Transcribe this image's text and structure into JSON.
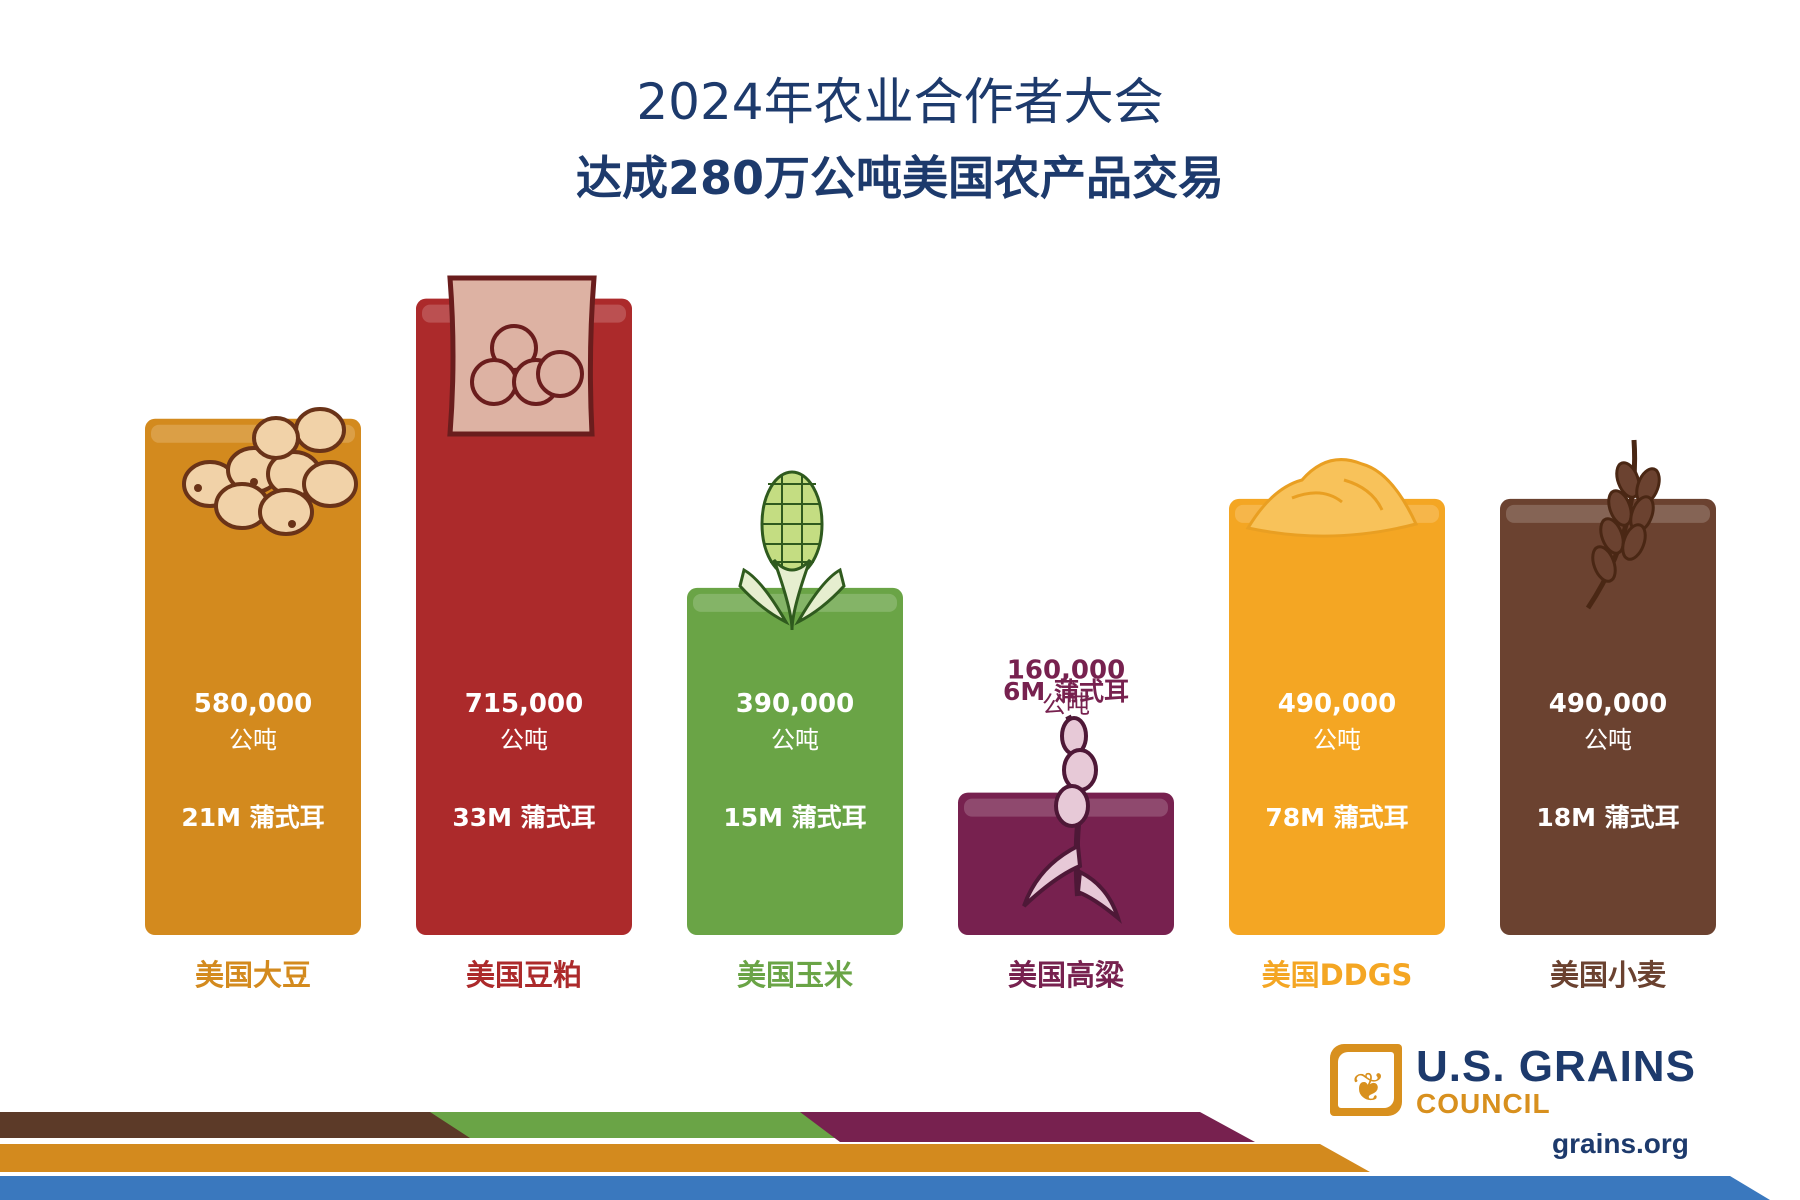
{
  "header": {
    "title_line1": "2024年农业合作者大会",
    "title_line2": "达成280万公吨美国农产品交易"
  },
  "chart_data": {
    "type": "bar",
    "title": "2024年农业合作者大会",
    "subtitle": "达成280万公吨美国农产品交易",
    "categories": [
      "美国大豆",
      "美国豆粕",
      "美国玉米",
      "美国高粱",
      "美国DDGS",
      "美国小麦"
    ],
    "values": [
      580000,
      715000,
      390000,
      160000,
      490000,
      490000
    ],
    "value_labels": [
      "580,000",
      "715,000",
      "390,000",
      "160,000",
      "490,000",
      "490,000"
    ],
    "unit_label": "公吨",
    "bushel_labels": [
      "21M 蒲式耳",
      "33M 蒲式耳",
      "15M 蒲式耳",
      "6M 蒲式耳",
      "78M 蒲式耳",
      "18M 蒲式耳"
    ],
    "colors": [
      "#d38a1e",
      "#ac2a2b",
      "#6aa446",
      "#77214f",
      "#f4a623",
      "#6b4230"
    ],
    "icons": [
      "soybeans-icon",
      "soybean-meal-bag-icon",
      "corn-cob-icon",
      "sorghum-plant-icon",
      "ddgs-pile-icon",
      "wheat-icon"
    ]
  },
  "footer": {
    "logo_name": "U.S. GRAINS",
    "logo_sub": "COUNCIL",
    "website": "grains.org",
    "stripe_colors": [
      "#5c3a28",
      "#6aa446",
      "#77214f",
      "#d38a1e",
      "#3a78be"
    ]
  }
}
